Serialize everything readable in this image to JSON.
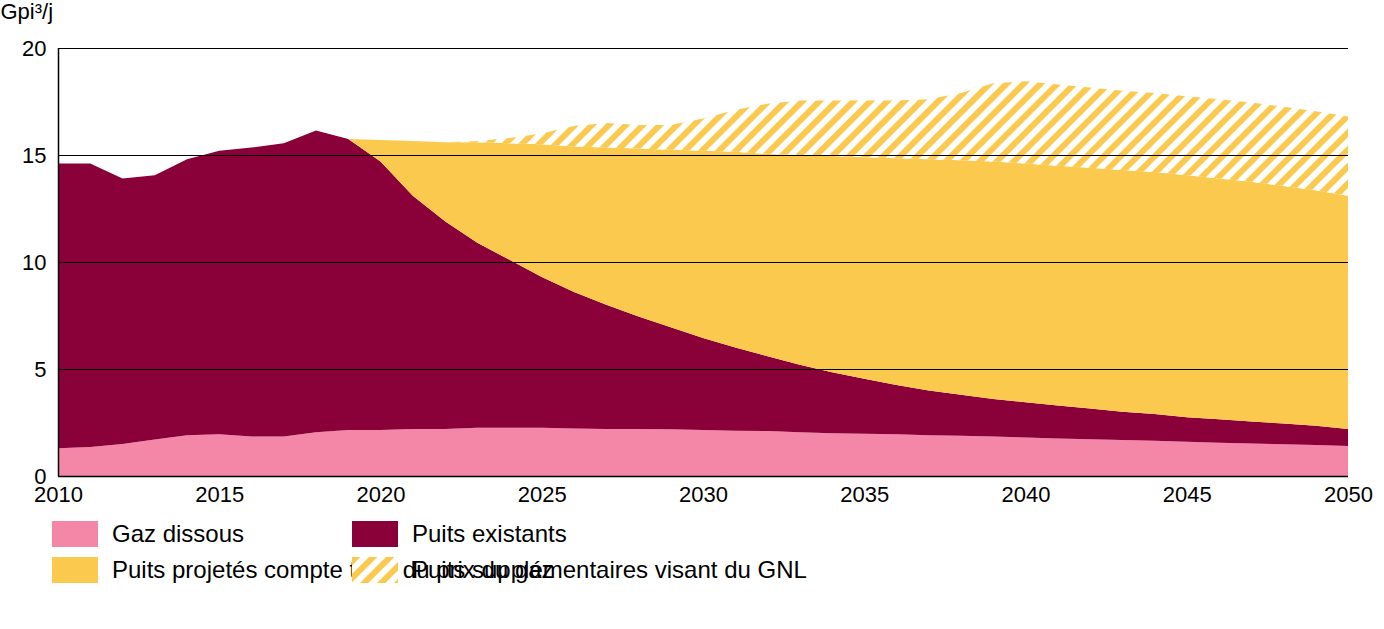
{
  "chart_data": {
    "type": "area",
    "stacked": true,
    "grid": true,
    "y_label": "Gpi³/j",
    "x": [
      2010,
      2011,
      2012,
      2013,
      2014,
      2015,
      2016,
      2017,
      2018,
      2019,
      2020,
      2021,
      2022,
      2023,
      2024,
      2025,
      2026,
      2027,
      2028,
      2029,
      2030,
      2031,
      2032,
      2033,
      2034,
      2035,
      2036,
      2037,
      2038,
      2039,
      2040,
      2041,
      2042,
      2043,
      2044,
      2045,
      2046,
      2047,
      2048,
      2049,
      2050
    ],
    "xlim": [
      2010,
      2050
    ],
    "xticks": [
      2010,
      2015,
      2020,
      2025,
      2030,
      2035,
      2040,
      2045,
      2050
    ],
    "ylim": [
      0,
      20
    ],
    "yticks": [
      0,
      5,
      10,
      15,
      20
    ],
    "series": [
      {
        "name": "Gaz dissous",
        "color": "#f487a8",
        "values": [
          1.3,
          1.35,
          1.5,
          1.7,
          1.9,
          1.95,
          1.85,
          1.85,
          2.05,
          2.15,
          2.15,
          2.2,
          2.2,
          2.25,
          2.25,
          2.25,
          2.22,
          2.2,
          2.2,
          2.18,
          2.15,
          2.12,
          2.1,
          2.05,
          2.0,
          1.98,
          1.95,
          1.9,
          1.88,
          1.85,
          1.8,
          1.75,
          1.72,
          1.68,
          1.65,
          1.6,
          1.55,
          1.52,
          1.48,
          1.45,
          1.4
        ]
      },
      {
        "name": "Puits existants",
        "color": "#8a0038",
        "values": [
          13.3,
          13.25,
          12.4,
          12.35,
          12.9,
          13.25,
          13.5,
          13.7,
          14.1,
          13.6,
          12.55,
          10.9,
          9.7,
          8.65,
          7.85,
          7.05,
          6.38,
          5.8,
          5.25,
          4.77,
          4.3,
          3.88,
          3.5,
          3.15,
          2.85,
          2.57,
          2.3,
          2.1,
          1.92,
          1.75,
          1.65,
          1.55,
          1.43,
          1.32,
          1.25,
          1.15,
          1.1,
          1.03,
          0.97,
          0.9,
          0.8
        ]
      },
      {
        "name": "Puits projetés compte tenu du prix du gaz",
        "color": "#fcc94f",
        "values": [
          null,
          null,
          null,
          null,
          null,
          null,
          null,
          null,
          null,
          0,
          1.0,
          2.55,
          3.7,
          4.7,
          5.45,
          6.2,
          6.8,
          7.35,
          7.85,
          8.3,
          8.75,
          9.15,
          9.45,
          9.8,
          10.1,
          10.35,
          10.6,
          10.8,
          10.95,
          11.1,
          11.15,
          11.2,
          11.25,
          11.3,
          11.3,
          11.3,
          11.25,
          11.2,
          11.1,
          11.0,
          10.9
        ]
      },
      {
        "name": "Puits supplémentaires visant du GNL",
        "color": "#fcc94f",
        "values": [
          null,
          null,
          null,
          null,
          null,
          null,
          null,
          null,
          null,
          0,
          0,
          0,
          0,
          0.05,
          0.25,
          0.5,
          0.95,
          1.15,
          1.1,
          1.15,
          1.5,
          1.95,
          2.35,
          2.55,
          2.6,
          2.65,
          2.7,
          2.8,
          3.15,
          3.65,
          3.85,
          3.8,
          3.75,
          3.7,
          3.7,
          3.7,
          3.7,
          3.7,
          3.7,
          3.7,
          3.7
        ]
      }
    ]
  }
}
